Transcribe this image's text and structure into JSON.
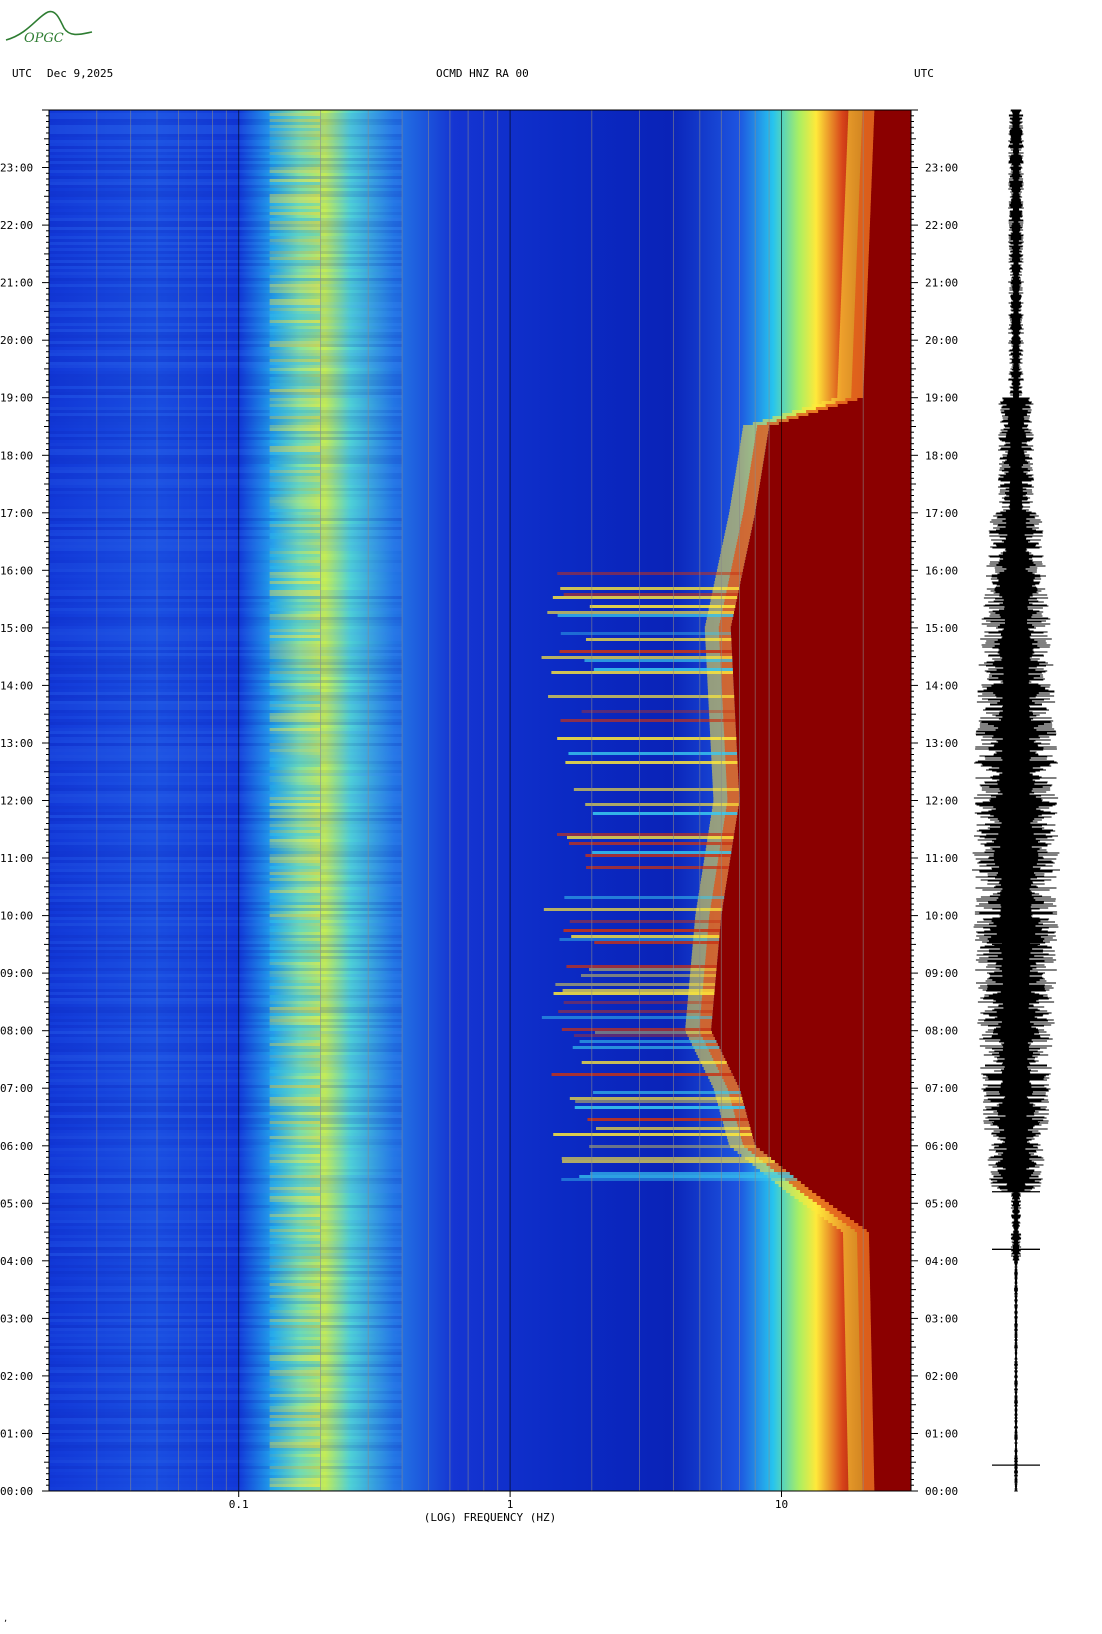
{
  "logo": {
    "text": "OPGC",
    "color": "#2e7d32"
  },
  "header": {
    "left_tz": "UTC",
    "date": "Dec 9,2025",
    "station": "OCMD HNZ RA 00",
    "right_tz": "UTC"
  },
  "footer_mark": "ʼ",
  "colors": {
    "background": "#ffffff",
    "low": "#0a2fd6",
    "mid": "#1fc7ef",
    "high": "#ffe93a",
    "saturated": "#8b0000",
    "waveform": "#000000"
  },
  "chart_data": {
    "type": "heatmap",
    "title": "OCMD HNZ RA 00",
    "xlabel": "(LOG) FREQUENCY (HZ)",
    "ylabel": "UTC",
    "x_scale": "log",
    "xlim": [
      0.02,
      30
    ],
    "x_ticks": [
      {
        "value": 0.1,
        "label": "0.1"
      },
      {
        "value": 1,
        "label": "1"
      },
      {
        "value": 10,
        "label": "10"
      }
    ],
    "ylim": [
      0,
      24
    ],
    "y_ticks": [
      {
        "value": 0,
        "label": "00:00"
      },
      {
        "value": 1,
        "label": "01:00"
      },
      {
        "value": 2,
        "label": "02:00"
      },
      {
        "value": 3,
        "label": "03:00"
      },
      {
        "value": 4,
        "label": "04:00"
      },
      {
        "value": 5,
        "label": "05:00"
      },
      {
        "value": 6,
        "label": "06:00"
      },
      {
        "value": 7,
        "label": "07:00"
      },
      {
        "value": 8,
        "label": "08:00"
      },
      {
        "value": 9,
        "label": "09:00"
      },
      {
        "value": 10,
        "label": "10:00"
      },
      {
        "value": 11,
        "label": "11:00"
      },
      {
        "value": 12,
        "label": "12:00"
      },
      {
        "value": 13,
        "label": "13:00"
      },
      {
        "value": 14,
        "label": "14:00"
      },
      {
        "value": 15,
        "label": "15:00"
      },
      {
        "value": 16,
        "label": "16:00"
      },
      {
        "value": 17,
        "label": "17:00"
      },
      {
        "value": 18,
        "label": "18:00"
      },
      {
        "value": 19,
        "label": "19:00"
      },
      {
        "value": 20,
        "label": "20:00"
      },
      {
        "value": 21,
        "label": "21:00"
      },
      {
        "value": 22,
        "label": "22:00"
      },
      {
        "value": 23,
        "label": "23:00"
      }
    ],
    "microseism_band_hz": [
      0.13,
      0.2
    ],
    "saturation_onset_hz": [
      {
        "hour": 0,
        "hz": 22
      },
      {
        "hour": 4.5,
        "hz": 21
      },
      {
        "hour": 5.2,
        "hz": 13
      },
      {
        "hour": 6,
        "hz": 8
      },
      {
        "hour": 7,
        "hz": 7
      },
      {
        "hour": 8,
        "hz": 5.5
      },
      {
        "hour": 10,
        "hz": 6
      },
      {
        "hour": 12,
        "hz": 7
      },
      {
        "hour": 15,
        "hz": 6.5
      },
      {
        "hour": 17,
        "hz": 8
      },
      {
        "hour": 18.5,
        "hz": 9
      },
      {
        "hour": 19,
        "hz": 20
      },
      {
        "hour": 24,
        "hz": 22
      }
    ],
    "active_period_hours": [
      5.2,
      16.1
    ],
    "waveform": {
      "grid": true,
      "legend": "none"
    }
  }
}
